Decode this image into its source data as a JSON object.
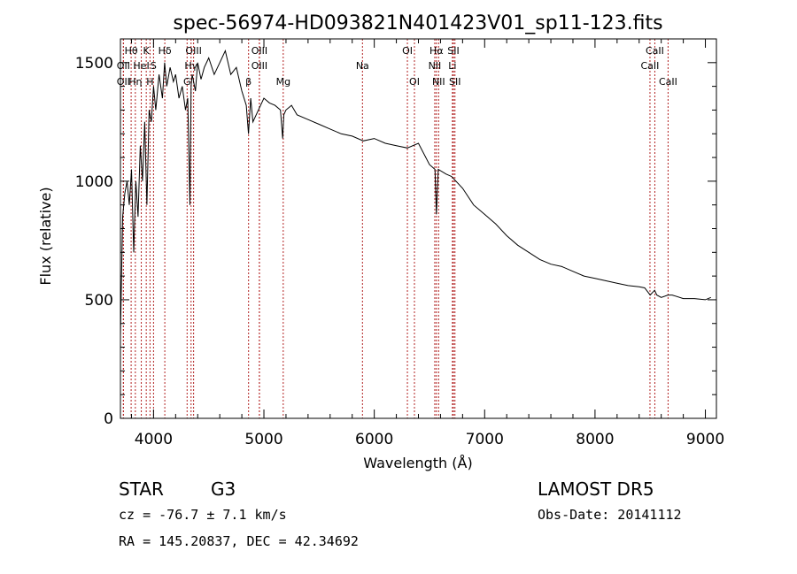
{
  "chart_data": {
    "type": "line",
    "title": "spec-56974-HD093821N401423V01_sp11-123.fits",
    "xlabel": "Wavelength (Å)",
    "ylabel": "Flux (relative)",
    "xlim": [
      3700,
      9100
    ],
    "ylim": [
      0,
      1600
    ],
    "xticks": [
      4000,
      5000,
      6000,
      7000,
      8000,
      9000
    ],
    "yticks": [
      0,
      500,
      1000,
      1500
    ],
    "grid": false,
    "series": [
      {
        "x": [
          3700,
          3720,
          3740,
          3760,
          3780,
          3800,
          3820,
          3840,
          3860,
          3880,
          3900,
          3920,
          3940,
          3960,
          3980,
          4000,
          4020,
          4050,
          4080,
          4100,
          4120,
          4150,
          4180,
          4200,
          4230,
          4260,
          4290,
          4310,
          4330,
          4340,
          4350,
          4380,
          4400,
          4430,
          4460,
          4500,
          4550,
          4600,
          4650,
          4700,
          4750,
          4800,
          4840,
          4860,
          4880,
          4900,
          4950,
          5000,
          5050,
          5100,
          5150,
          5170,
          5180,
          5200,
          5250,
          5300,
          5400,
          5500,
          5600,
          5700,
          5800,
          5900,
          6000,
          6100,
          6200,
          6300,
          6400,
          6500,
          6550,
          6563,
          6580,
          6650,
          6700,
          6800,
          6900,
          7000,
          7100,
          7200,
          7300,
          7400,
          7500,
          7600,
          7700,
          7800,
          7900,
          8000,
          8100,
          8200,
          8300,
          8400,
          8450,
          8500,
          8540,
          8560,
          8600,
          8660,
          8700,
          8800,
          8900,
          9000,
          9050
        ],
        "values": [
          350,
          850,
          950,
          1000,
          900,
          1050,
          700,
          1000,
          850,
          1150,
          1000,
          1250,
          900,
          1300,
          1250,
          1400,
          1300,
          1450,
          1350,
          1500,
          1400,
          1480,
          1420,
          1450,
          1350,
          1400,
          1300,
          1350,
          900,
          1400,
          1450,
          1380,
          1500,
          1430,
          1480,
          1520,
          1450,
          1500,
          1550,
          1450,
          1480,
          1380,
          1320,
          1200,
          1350,
          1250,
          1300,
          1350,
          1330,
          1320,
          1300,
          1180,
          1280,
          1300,
          1320,
          1280,
          1260,
          1240,
          1220,
          1200,
          1190,
          1170,
          1180,
          1160,
          1150,
          1140,
          1160,
          1070,
          1050,
          860,
          1050,
          1030,
          1020,
          970,
          900,
          860,
          820,
          770,
          730,
          700,
          670,
          650,
          640,
          620,
          600,
          590,
          580,
          570,
          560,
          555,
          550,
          520,
          540,
          520,
          510,
          520,
          520,
          505,
          505,
          500,
          510
        ]
      }
    ],
    "spectral_lines": [
      {
        "label": "Hθ",
        "x": 3797,
        "row": 0
      },
      {
        "label": "K",
        "x": 3934,
        "row": 0
      },
      {
        "label": "Hδ",
        "x": 4102,
        "row": 0
      },
      {
        "label": "OIII",
        "x": 4363,
        "row": 0
      },
      {
        "label": "OIII",
        "x": 4959,
        "row": 0
      },
      {
        "label": "OI",
        "x": 6300,
        "row": 0
      },
      {
        "label": "Hα",
        "x": 6563,
        "row": 0
      },
      {
        "label": "SII",
        "x": 6717,
        "row": 0
      },
      {
        "label": "CaII",
        "x": 8542,
        "row": 0
      },
      {
        "label": "OII",
        "x": 3727,
        "row": 1
      },
      {
        "label": "HeI",
        "x": 3889,
        "row": 1
      },
      {
        "label": "S",
        "x": 4000,
        "row": 1
      },
      {
        "label": "Hγ",
        "x": 4340,
        "row": 1
      },
      {
        "label": "OIII",
        "x": 4959,
        "row": 1
      },
      {
        "label": "Na",
        "x": 5893,
        "row": 1
      },
      {
        "label": "NII",
        "x": 6548,
        "row": 1
      },
      {
        "label": "Li",
        "x": 6708,
        "row": 1
      },
      {
        "label": "CaII",
        "x": 8498,
        "row": 1
      },
      {
        "label": "OII",
        "x": 3727,
        "row": 2
      },
      {
        "label": "Hη",
        "x": 3835,
        "row": 2
      },
      {
        "label": "H",
        "x": 3968,
        "row": 2
      },
      {
        "label": "G",
        "x": 4304,
        "row": 2
      },
      {
        "label": "β",
        "x": 4861,
        "row": 2
      },
      {
        "label": "Mg",
        "x": 5175,
        "row": 2
      },
      {
        "label": "OI",
        "x": 6364,
        "row": 2
      },
      {
        "label": "NII",
        "x": 6583,
        "row": 2
      },
      {
        "label": "SII",
        "x": 6731,
        "row": 2
      },
      {
        "label": "CaII",
        "x": 8662,
        "row": 2
      }
    ]
  },
  "footer": {
    "object_class": "STAR",
    "subclass": "G3",
    "survey": "LAMOST DR5",
    "redshift": "cz = -76.7 ± 7.1 km/s",
    "obs_date": "Obs-Date: 20141112",
    "coords": "RA = 145.20837, DEC =  42.34692"
  },
  "colors": {
    "spectrum": "#000000",
    "line_markers": "#b22222",
    "axes": "#000000"
  }
}
